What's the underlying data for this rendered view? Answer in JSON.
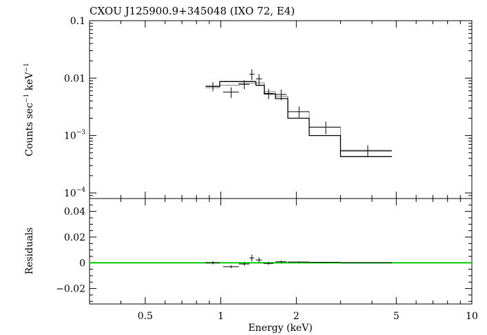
{
  "chart_data": {
    "type": "scatter",
    "title": "CXOU J125900.9+345048 (IXO 72, E4)",
    "xlabel": "Energy (keV)",
    "x_scale": "log",
    "xlim": [
      0.3,
      10
    ],
    "x_ticks": [
      0.5,
      1,
      2,
      5,
      10
    ],
    "x_tick_labels": [
      "0.5",
      "1",
      "2",
      "5",
      "10"
    ],
    "colors": {
      "data": "#000000",
      "zero_line": "#00cc00"
    },
    "spectrum": {
      "ylabel_main": "Counts sec",
      "ylabel_sup1": "−1",
      "ylabel_unit": " keV",
      "ylabel_sup2": "−1",
      "y_scale": "log",
      "ylim": [
        8e-05,
        0.1
      ],
      "y_ticks": [
        {
          "value": 0.1,
          "base": "0.1",
          "exp": ""
        },
        {
          "value": 0.01,
          "base": "0.01",
          "exp": ""
        },
        {
          "value": 0.001,
          "base": "10",
          "exp": "−3"
        },
        {
          "value": 0.0001,
          "base": "10",
          "exp": "−4"
        }
      ],
      "data": [
        {
          "x": 0.93,
          "xerr": [
            0.06,
            0.06
          ],
          "y": 0.0072,
          "yerr": [
            0.0013,
            0.0013
          ]
        },
        {
          "x": 1.1,
          "xerr": [
            0.08,
            0.08
          ],
          "y": 0.0057,
          "yerr": [
            0.0012,
            0.0012
          ]
        },
        {
          "x": 1.24,
          "xerr": [
            0.06,
            0.06
          ],
          "y": 0.0078,
          "yerr": [
            0.0014,
            0.0014
          ]
        },
        {
          "x": 1.33,
          "xerr": [
            0.03,
            0.03
          ],
          "y": 0.0117,
          "yerr": [
            0.0025,
            0.0025
          ]
        },
        {
          "x": 1.42,
          "xerr": [
            0.04,
            0.04
          ],
          "y": 0.0097,
          "yerr": [
            0.002,
            0.002
          ]
        },
        {
          "x": 1.55,
          "xerr": [
            0.07,
            0.07
          ],
          "y": 0.0054,
          "yerr": [
            0.0011,
            0.0011
          ]
        },
        {
          "x": 1.74,
          "xerr": [
            0.09,
            0.09
          ],
          "y": 0.0052,
          "yerr": [
            0.0011,
            0.0011
          ]
        },
        {
          "x": 2.05,
          "xerr": [
            0.2,
            0.2
          ],
          "y": 0.0026,
          "yerr": [
            0.0006,
            0.0006
          ]
        },
        {
          "x": 2.62,
          "xerr": [
            0.37,
            0.37
          ],
          "y": 0.0014,
          "yerr": [
            0.00035,
            0.00035
          ]
        },
        {
          "x": 3.85,
          "xerr": [
            0.85,
            0.95
          ],
          "y": 0.00055,
          "yerr": [
            0.00013,
            0.00013
          ]
        }
      ],
      "model_dark": [
        {
          "x0": 0.87,
          "x1": 0.99,
          "y": 0.0072
        },
        {
          "x0": 0.99,
          "x1": 1.18,
          "y": 0.0087
        },
        {
          "x0": 1.18,
          "x1": 1.38,
          "y": 0.0087
        },
        {
          "x0": 1.38,
          "x1": 1.49,
          "y": 0.0075
        },
        {
          "x0": 1.49,
          "x1": 1.65,
          "y": 0.0053
        },
        {
          "x0": 1.65,
          "x1": 1.85,
          "y": 0.0044
        },
        {
          "x0": 1.85,
          "x1": 2.25,
          "y": 0.002
        },
        {
          "x0": 2.25,
          "x1": 3.0,
          "y": 0.001
        },
        {
          "x0": 3.0,
          "x1": 4.8,
          "y": 0.00043
        }
      ],
      "model_light": [
        {
          "x0": 0.87,
          "x1": 0.99,
          "y": 0.0068
        },
        {
          "x0": 0.99,
          "x1": 1.18,
          "y": 0.0075
        },
        {
          "x0": 1.18,
          "x1": 1.38,
          "y": 0.0081
        },
        {
          "x0": 1.38,
          "x1": 1.49,
          "y": 0.0083
        },
        {
          "x0": 1.49,
          "x1": 1.65,
          "y": 0.0058
        },
        {
          "x0": 1.65,
          "x1": 1.85,
          "y": 0.0048
        },
        {
          "x0": 1.85,
          "x1": 2.25,
          "y": 0.0026
        },
        {
          "x0": 2.25,
          "x1": 3.0,
          "y": 0.0014
        },
        {
          "x0": 3.0,
          "x1": 4.8,
          "y": 0.00053
        }
      ]
    },
    "residuals": {
      "ylabel": "Residuals",
      "ylim": [
        -0.032,
        0.05
      ],
      "y_ticks": [
        0.04,
        0.02,
        0,
        -0.02
      ],
      "y_tick_labels": [
        "0.04",
        "0.02",
        "0",
        "−0.02"
      ],
      "zero_line": 0,
      "data": [
        {
          "x": 0.93,
          "xerr": [
            0.06,
            0.06
          ],
          "y": 0.0,
          "yerr": [
            0.0012,
            0.0012
          ]
        },
        {
          "x": 1.1,
          "xerr": [
            0.08,
            0.08
          ],
          "y": -0.003,
          "yerr": [
            0.0011,
            0.0011
          ]
        },
        {
          "x": 1.24,
          "xerr": [
            0.06,
            0.06
          ],
          "y": -0.0009,
          "yerr": [
            0.0013,
            0.0013
          ]
        },
        {
          "x": 1.33,
          "xerr": [
            0.03,
            0.03
          ],
          "y": 0.0038,
          "yerr": [
            0.0025,
            0.0025
          ]
        },
        {
          "x": 1.42,
          "xerr": [
            0.04,
            0.04
          ],
          "y": 0.0022,
          "yerr": [
            0.002,
            0.002
          ]
        },
        {
          "x": 1.55,
          "xerr": [
            0.07,
            0.07
          ],
          "y": -0.0005,
          "yerr": [
            0.001,
            0.001
          ]
        },
        {
          "x": 1.74,
          "xerr": [
            0.09,
            0.09
          ],
          "y": 0.0008,
          "yerr": [
            0.001,
            0.001
          ]
        },
        {
          "x": 2.05,
          "xerr": [
            0.2,
            0.2
          ],
          "y": 0.0006,
          "yerr": [
            0.0006,
            0.0006
          ]
        },
        {
          "x": 2.62,
          "xerr": [
            0.37,
            0.37
          ],
          "y": 0.0004,
          "yerr": [
            0.0003,
            0.0003
          ]
        },
        {
          "x": 3.85,
          "xerr": [
            0.85,
            0.95
          ],
          "y": 0.0001,
          "yerr": [
            0.0001,
            0.0001
          ]
        }
      ]
    }
  }
}
